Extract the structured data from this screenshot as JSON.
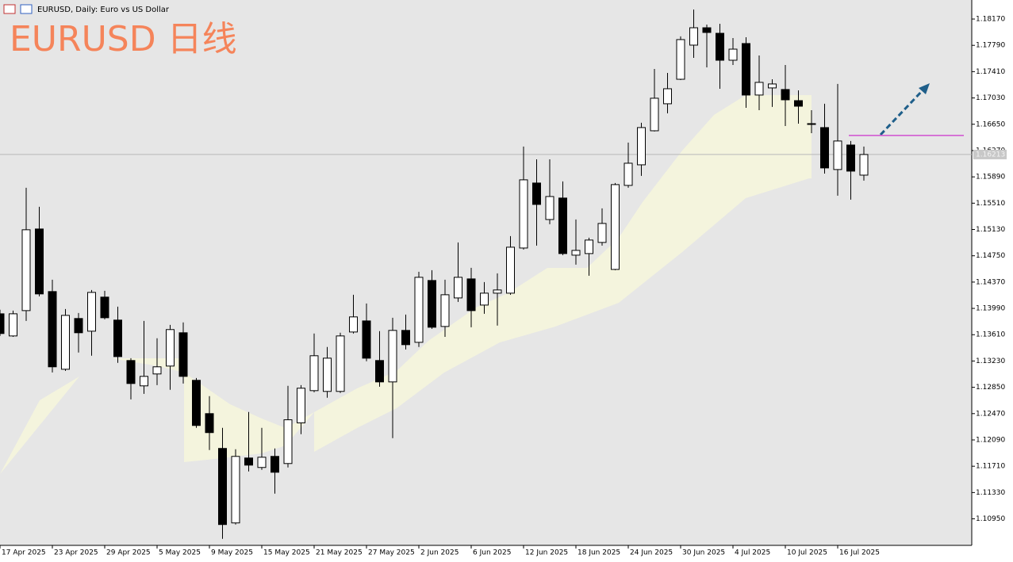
{
  "chart_data": {
    "type": "candlestick",
    "window_title": "EURUSD, Daily:  Euro vs US Dollar",
    "title": "EURUSD 日线",
    "up_color": "#ffffff",
    "down_color": "#000000",
    "background": "#e6e6e6",
    "level_line": {
      "value": 1.16488,
      "color": "#d04fd0"
    },
    "current_price": 1.16213,
    "categories": [
      "17 Apr 2025",
      null,
      null,
      null,
      "23 Apr 2025",
      null,
      null,
      null,
      "29 Apr 2025",
      null,
      null,
      null,
      "5 May 2025",
      null,
      null,
      null,
      "9 May 2025",
      null,
      null,
      null,
      "15 May 2025",
      null,
      null,
      null,
      "21 May 2025",
      null,
      null,
      null,
      "27 May 2025",
      null,
      null,
      null,
      "2 Jun 2025",
      null,
      null,
      null,
      "6 Jun 2025",
      null,
      null,
      null,
      "12 Jun 2025",
      null,
      null,
      null,
      "18 Jun 2025",
      null,
      null,
      null,
      "24 Jun 2025",
      null,
      null,
      null,
      "30 Jun 2025",
      null,
      null,
      null,
      "4 Jul 2025",
      null,
      null,
      null,
      "10 Jul 2025",
      null,
      null,
      null,
      "16 Jul 2025",
      null,
      null
    ],
    "open": [
      1.13912,
      1.13592,
      1.13958,
      1.15137,
      1.14233,
      1.13111,
      1.13844,
      1.13661,
      1.14153,
      1.13821,
      1.13237,
      1.12871,
      1.13043,
      1.13157,
      1.13638,
      1.12951,
      1.1247,
      1.11967,
      1.10891,
      1.11829,
      1.11692,
      1.11852,
      1.11749,
      1.12336,
      1.12802,
      1.12791,
      1.12791,
      1.13649,
      1.13809,
      1.13237,
      1.12928,
      1.13672,
      1.135,
      1.14393,
      1.13729,
      1.14141,
      1.14416,
      1.14038,
      1.1421,
      1.1421,
      1.14862,
      1.15801,
      1.15274,
      1.15584,
      1.14759,
      1.14782,
      1.14943,
      1.14553,
      1.15767,
      1.16064,
      1.16556,
      1.16946,
      1.173,
      1.17793,
      1.18044,
      1.17964,
      1.17575,
      1.17816,
      1.17072,
      1.17175,
      1.17152,
      1.16991,
      1.16659,
      1.16602,
      1.15996,
      1.1635,
      1.15915
    ],
    "high": [
      1.1397,
      1.13958,
      1.15732,
      1.15458,
      1.14405,
      1.13981,
      1.13924,
      1.14256,
      1.14244,
      1.14015,
      1.13271,
      1.13809,
      1.13558,
      1.13752,
      1.13787,
      1.12985,
      1.12722,
      1.12264,
      1.11955,
      1.12493,
      1.12264,
      1.11967,
      1.12871,
      1.12882,
      1.13627,
      1.13432,
      1.13638,
      1.14187,
      1.14061,
      1.13661,
      1.13855,
      1.13901,
      1.14519,
      1.14542,
      1.14405,
      1.14943,
      1.14576,
      1.1437,
      1.14496,
      1.15034,
      1.16328,
      1.16144,
      1.16144,
      1.15824,
      1.15274,
      1.15011,
      1.15435,
      1.15801,
      1.16385,
      1.16671,
      1.17449,
      1.17392,
      1.17919,
      1.18308,
      1.1809,
      1.18102,
      1.17896,
      1.17907,
      1.17644,
      1.173,
      1.17506,
      1.1714,
      1.16854,
      1.16946,
      1.17232,
      1.16408,
      1.16328
    ],
    "low": [
      1.13592,
      1.13578,
      1.13809,
      1.14164,
      1.13065,
      1.13088,
      1.13352,
      1.13306,
      1.13832,
      1.13203,
      1.12676,
      1.12756,
      1.12882,
      1.12814,
      1.12905,
      1.12264,
      1.11944,
      1.10662,
      1.10868,
      1.11635,
      1.11658,
      1.11314,
      1.11692,
      1.12173,
      1.12779,
      1.12699,
      1.12768,
      1.13627,
      1.13226,
      1.12859,
      1.12115,
      1.13397,
      1.13432,
      1.13695,
      1.13578,
      1.14084,
      1.13718,
      1.13912,
      1.13741,
      1.14187,
      1.1484,
      1.14897,
      1.15206,
      1.14759,
      1.14622,
      1.14462,
      1.14897,
      1.14542,
      1.15732,
      1.15904,
      1.16545,
      1.16808,
      1.17289,
      1.17609,
      1.17472,
      1.17163,
      1.17506,
      1.16888,
      1.16854,
      1.169,
      1.16625,
      1.16659,
      1.16522,
      1.15938,
      1.15618,
      1.15561,
      1.15835
    ],
    "close": [
      1.13627,
      1.13912,
      1.15126,
      1.14199,
      1.13146,
      1.13889,
      1.13638,
      1.14221,
      1.13855,
      1.13294,
      1.12905,
      1.13008,
      1.13146,
      1.13684,
      1.13008,
      1.12299,
      1.12196,
      1.10868,
      1.11852,
      1.11726,
      1.1184,
      1.11623,
      1.12381,
      1.12837,
      1.13306,
      1.13271,
      1.13592,
      1.13867,
      1.13271,
      1.12928,
      1.13672,
      1.13466,
      1.14439,
      1.13718,
      1.14187,
      1.14439,
      1.13958,
      1.1421,
      1.14256,
      1.14874,
      1.15847,
      1.15492,
      1.15606,
      1.14782,
      1.14828,
      1.14977,
      1.15217,
      1.15778,
      1.16087,
      1.16602,
      1.17026,
      1.17163,
      1.17873,
      1.18044,
      1.17976,
      1.17575,
      1.17735,
      1.17072,
      1.17255,
      1.17232,
      1.17003,
      1.16911,
      1.16648,
      1.16019,
      1.16408,
      1.15973,
      1.16213
    ],
    "ylim": [
      1.10567,
      1.18445
    ],
    "yticks": [
      {
        "value": 1.1817,
        "label": "1.18170"
      },
      {
        "value": 1.1779,
        "label": "1.17790"
      },
      {
        "value": 1.1741,
        "label": "1.17410"
      },
      {
        "value": 1.1703,
        "label": "1.17030"
      },
      {
        "value": 1.1665,
        "label": "1.16650"
      },
      {
        "value": 1.1627,
        "label": "1.16270"
      },
      {
        "value": 1.1589,
        "label": "1.15890"
      },
      {
        "value": 1.1551,
        "label": "1.15510"
      },
      {
        "value": 1.1513,
        "label": "1.15130"
      },
      {
        "value": 1.1475,
        "label": "1.14750"
      },
      {
        "value": 1.1437,
        "label": "1.14370"
      },
      {
        "value": 1.1399,
        "label": "1.13990"
      },
      {
        "value": 1.1361,
        "label": "1.13610"
      },
      {
        "value": 1.1323,
        "label": "1.13230"
      },
      {
        "value": 1.1285,
        "label": "1.12850"
      },
      {
        "value": 1.1247,
        "label": "1.12470"
      },
      {
        "value": 1.1209,
        "label": "1.12090"
      },
      {
        "value": 1.1171,
        "label": "1.11710"
      },
      {
        "value": 1.1133,
        "label": "1.11330"
      },
      {
        "value": 1.1095,
        "label": "1.10950"
      }
    ]
  }
}
